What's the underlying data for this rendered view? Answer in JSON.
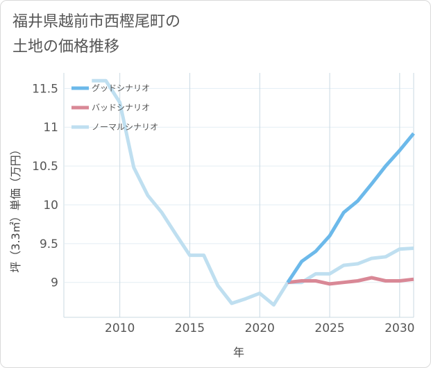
{
  "chart_data": {
    "type": "line",
    "title": "福井県越前市西樫尾町の\n土地の価格推移",
    "xlabel": "年",
    "ylabel": "坪（3.3㎡）単価（万円）",
    "xlim": [
      2006,
      2031
    ],
    "ylim": [
      8.55,
      11.7
    ],
    "xticks": [
      2010,
      2015,
      2020,
      2025,
      2030
    ],
    "yticks": [
      9,
      9.5,
      10,
      10.5,
      11,
      11.5
    ],
    "ytick_labels": [
      "9",
      "9.5",
      "10",
      "10.5",
      "11",
      "11.5"
    ],
    "grid": true,
    "legend_position": "top-left",
    "series": [
      {
        "name": "グッドシナリオ",
        "color": "#6cb9ea",
        "x": [
          2022,
          2023,
          2024,
          2025,
          2026,
          2027,
          2028,
          2029,
          2030,
          2031
        ],
        "y": [
          9.0,
          9.27,
          9.4,
          9.6,
          9.9,
          10.05,
          10.27,
          10.5,
          10.7,
          10.92
        ]
      },
      {
        "name": "バッドシナリオ",
        "color": "#d98896",
        "x": [
          2022,
          2023,
          2024,
          2025,
          2026,
          2027,
          2028,
          2029,
          2030,
          2031
        ],
        "y": [
          9.0,
          9.02,
          9.02,
          8.98,
          9.0,
          9.02,
          9.06,
          9.02,
          9.02,
          9.04
        ]
      },
      {
        "name": "ノーマルシナリオ",
        "color": "#bfdff0",
        "x": [
          2008,
          2009,
          2010,
          2011,
          2012,
          2013,
          2014,
          2015,
          2016,
          2017,
          2018,
          2019,
          2020,
          2021,
          2022,
          2023,
          2024,
          2025,
          2026,
          2027,
          2028,
          2029,
          2030,
          2031
        ],
        "y": [
          11.6,
          11.6,
          11.32,
          10.48,
          10.12,
          9.9,
          9.62,
          9.35,
          9.35,
          8.96,
          8.73,
          8.79,
          8.86,
          8.71,
          9.0,
          9.0,
          9.11,
          9.11,
          9.22,
          9.24,
          9.31,
          9.33,
          9.43,
          9.44
        ]
      }
    ]
  }
}
